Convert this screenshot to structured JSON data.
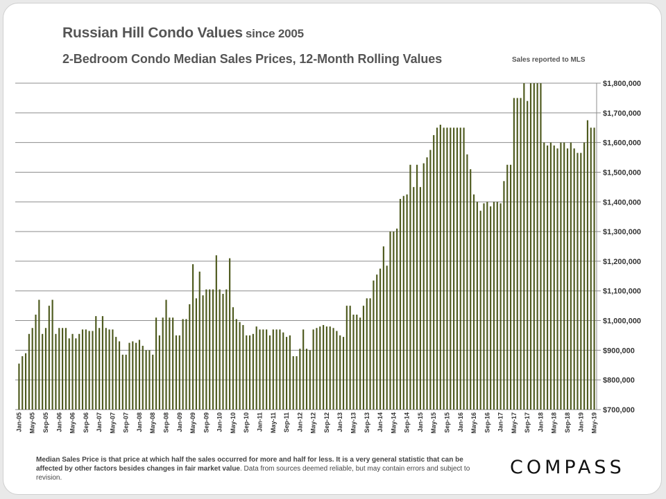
{
  "header": {
    "title": "Russian Hill Condo Values",
    "title_suffix": "since 2005",
    "subtitle": "2-Bedroom Condo Median Sales Prices, 12-Month Rolling Values",
    "source_note": "Sales reported to MLS"
  },
  "footnote": {
    "bold_text": "Median Sales Price is that price at which half the sales occurred for more and half for less. It is a very general statistic that can be affected by other factors besides changes in fair market value",
    "plain_text": ". Data from sources deemed reliable, but may contain errors and subject to revision."
  },
  "logo": {
    "text": "COMPASS"
  },
  "colors": {
    "bar": "#4e5a1e",
    "grid": "#8c8c8c",
    "axis_text": "#333333"
  },
  "chart_data": {
    "type": "bar",
    "title": "2-Bedroom Condo Median Sales Prices, 12-Month Rolling Values",
    "xlabel": "",
    "ylabel": "",
    "ylim": [
      700000,
      1800000
    ],
    "yticks": [
      700000,
      800000,
      900000,
      1000000,
      1100000,
      1200000,
      1300000,
      1400000,
      1500000,
      1600000,
      1700000,
      1800000
    ],
    "ytick_labels": [
      "$700,000",
      "$800,000",
      "$900,000",
      "$1,000,000",
      "$1,100,000",
      "$1,200,000",
      "$1,300,000",
      "$1,400,000",
      "$1,500,000",
      "$1,600,000",
      "$1,700,000",
      "$1,800,000"
    ],
    "y_axis_side": "right",
    "grid": true,
    "start": "Jan-05",
    "end": "May-19",
    "x_tick_labels": [
      "Jan-05",
      "May-05",
      "Sep-05",
      "Jan-06",
      "May-06",
      "Sep-06",
      "Jan-07",
      "May-07",
      "Sep-07",
      "Jan-08",
      "May-08",
      "Sep-08",
      "Jan-09",
      "May-09",
      "Sep-09",
      "Jan-10",
      "May-10",
      "Sep-10",
      "Jan-11",
      "May-11",
      "Sep-11",
      "Jan-12",
      "May-12",
      "Sep-12",
      "Jan-13",
      "May-13",
      "Sep-13",
      "Jan-14",
      "May-14",
      "Sep-14",
      "Jan-15",
      "May-15",
      "Sep-15",
      "Jan-16",
      "May-16",
      "Sep-16",
      "Jan-17",
      "May-17",
      "Sep-17",
      "Jan-18",
      "May-18",
      "Sep-18",
      "Jan-19",
      "May-19"
    ],
    "series": [
      {
        "name": "Median Sales Price",
        "values": [
          855000,
          880000,
          890000,
          955000,
          975000,
          1020000,
          1070000,
          955000,
          975000,
          1050000,
          1070000,
          955000,
          975000,
          975000,
          975000,
          940000,
          955000,
          940000,
          955000,
          970000,
          970000,
          965000,
          965000,
          1015000,
          975000,
          1015000,
          975000,
          970000,
          970000,
          945000,
          930000,
          885000,
          885000,
          925000,
          930000,
          925000,
          935000,
          915000,
          900000,
          900000,
          885000,
          1010000,
          950000,
          1010000,
          1070000,
          1010000,
          1010000,
          950000,
          950000,
          1005000,
          1005000,
          1055000,
          1190000,
          1075000,
          1165000,
          1085000,
          1105000,
          1105000,
          1105000,
          1220000,
          1105000,
          1090000,
          1105000,
          1210000,
          1045000,
          1005000,
          995000,
          985000,
          950000,
          950000,
          955000,
          980000,
          970000,
          970000,
          970000,
          950000,
          970000,
          970000,
          970000,
          960000,
          945000,
          950000,
          880000,
          880000,
          905000,
          970000,
          905000,
          900000,
          970000,
          975000,
          980000,
          985000,
          980000,
          980000,
          975000,
          965000,
          950000,
          945000,
          1050000,
          1050000,
          1020000,
          1020000,
          1010000,
          1050000,
          1075000,
          1075000,
          1135000,
          1155000,
          1175000,
          1250000,
          1185000,
          1300000,
          1300000,
          1310000,
          1410000,
          1420000,
          1425000,
          1525000,
          1450000,
          1525000,
          1450000,
          1530000,
          1550000,
          1575000,
          1625000,
          1650000,
          1660000,
          1650000,
          1650000,
          1650000,
          1650000,
          1650000,
          1650000,
          1650000,
          1560000,
          1510000,
          1425000,
          1400000,
          1370000,
          1395000,
          1400000,
          1385000,
          1400000,
          1400000,
          1395000,
          1470000,
          1525000,
          1525000,
          1750000,
          1750000,
          1750000,
          1800000,
          1740000,
          1800000,
          1800000,
          1800000,
          1800000,
          1600000,
          1590000,
          1600000,
          1590000,
          1580000,
          1600000,
          1600000,
          1580000,
          1600000,
          1580000,
          1565000,
          1565000,
          1600000,
          1675000,
          1650000,
          1650000
        ]
      }
    ]
  }
}
